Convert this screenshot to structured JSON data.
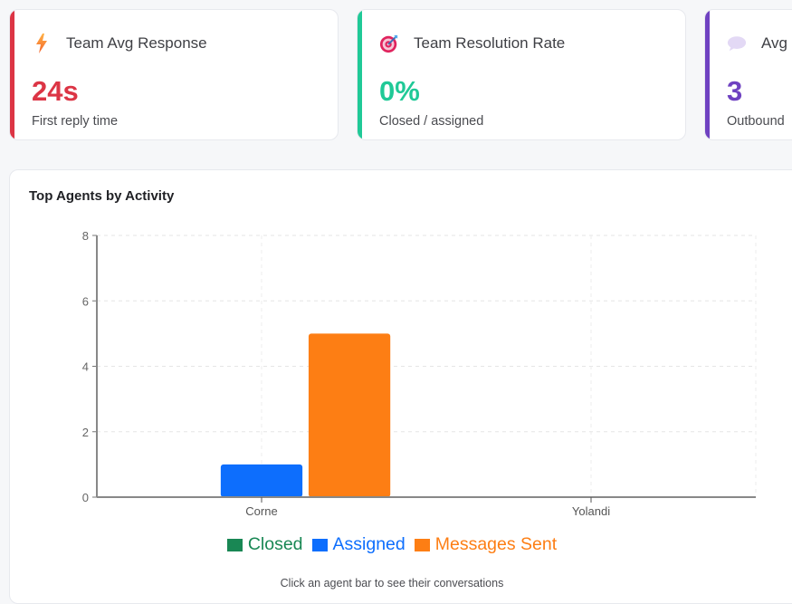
{
  "kpis": [
    {
      "icon": "lightning-icon",
      "title": "Team Avg Response",
      "value": "24s",
      "subtitle": "First reply time",
      "accent": "#dc3545"
    },
    {
      "icon": "target-icon",
      "title": "Team Resolution Rate",
      "value": "0%",
      "subtitle": "Closed / assigned",
      "accent": "#20c997"
    },
    {
      "icon": "speech-bubble-icon",
      "title": "Avg",
      "value": "3",
      "subtitle": "Outbound",
      "accent": "#6f42c1"
    }
  ],
  "chart": {
    "title": "Top Agents by Activity",
    "hint": "Click an agent bar to see their conversations"
  },
  "chart_data": {
    "type": "bar",
    "title": "Top Agents by Activity",
    "categories": [
      "Corne",
      "Yolandi"
    ],
    "series": [
      {
        "name": "Closed",
        "color": "#198754",
        "values": [
          0,
          0
        ]
      },
      {
        "name": "Assigned",
        "color": "#0d6efd",
        "values": [
          1,
          0
        ]
      },
      {
        "name": "Messages Sent",
        "color": "#fd7e14",
        "values": [
          5,
          0
        ]
      }
    ],
    "xlabel": "",
    "ylabel": "",
    "ylim": [
      0,
      8
    ],
    "yticks": [
      0,
      2,
      4,
      6,
      8
    ],
    "grid": true,
    "legend_position": "bottom"
  }
}
